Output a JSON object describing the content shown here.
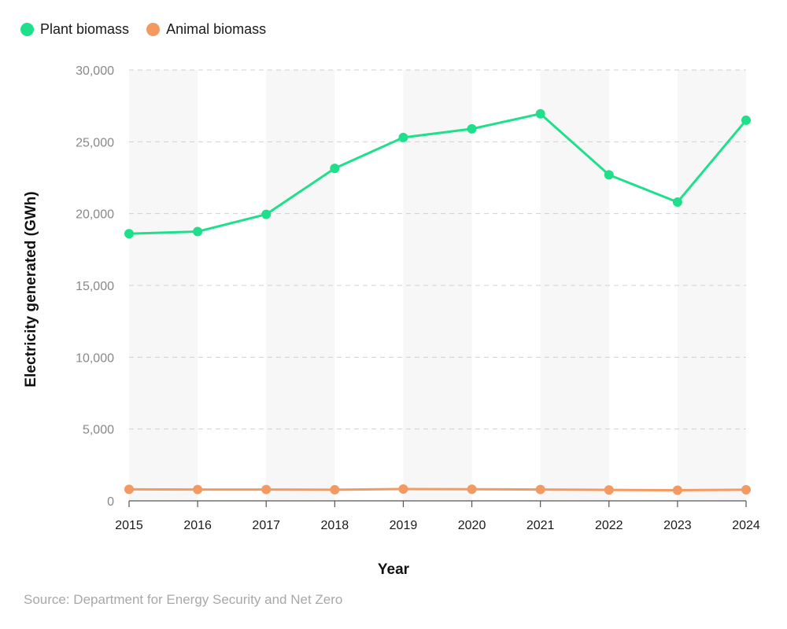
{
  "chart_data": {
    "type": "line",
    "categories": [
      "2015",
      "2016",
      "2017",
      "2018",
      "2019",
      "2020",
      "2021",
      "2022",
      "2023",
      "2024"
    ],
    "series": [
      {
        "name": "Plant biomass",
        "color": "#1fe08a",
        "values": [
          18600,
          18750,
          19950,
          23150,
          25300,
          25900,
          26950,
          22700,
          20800,
          26500
        ]
      },
      {
        "name": "Animal biomass",
        "color": "#f39a63",
        "values": [
          800,
          790,
          790,
          770,
          820,
          810,
          790,
          760,
          740,
          770
        ]
      }
    ],
    "xlabel": "Year",
    "ylabel": "Electricity generated (GWh)",
    "ylim": [
      0,
      30000
    ],
    "yticks": [
      0,
      5000,
      10000,
      15000,
      20000,
      25000,
      30000
    ],
    "ytick_labels": [
      "0",
      "5,000",
      "10,000",
      "15,000",
      "20,000",
      "25,000",
      "30,000"
    ],
    "grid": true,
    "legend_position": "top-left",
    "source": "Source: Department for Energy Security and Net Zero"
  }
}
